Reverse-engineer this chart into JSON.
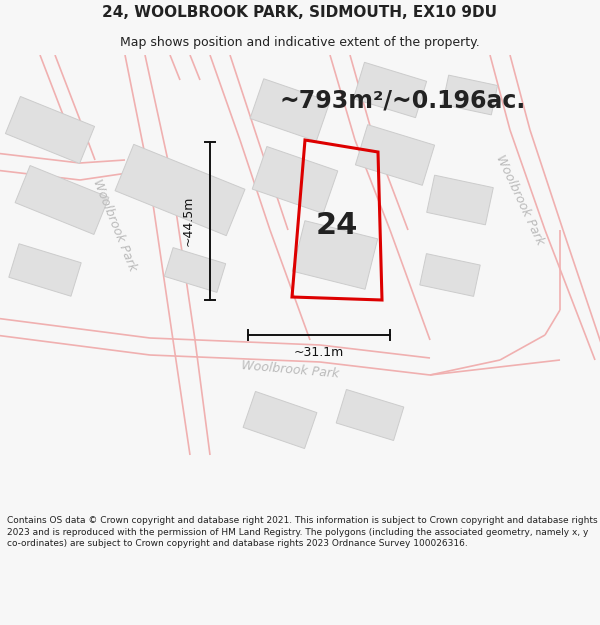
{
  "title_line1": "24, WOOLBROOK PARK, SIDMOUTH, EX10 9DU",
  "title_line2": "Map shows position and indicative extent of the property.",
  "area_text": "~793m²/~0.196ac.",
  "number_label": "24",
  "dim_width": "~31.1m",
  "dim_height": "~44.5m",
  "road_label_left": "Woolbrook Park",
  "road_label_right": "Woolbrook Park",
  "road_label_bottom": "Woolbrook Park",
  "footer_text": "Contains OS data © Crown copyright and database right 2021. This information is subject to Crown copyright and database rights 2023 and is reproduced with the permission of HM Land Registry. The polygons (including the associated geometry, namely x, y co-ordinates) are subject to Crown copyright and database rights 2023 Ordnance Survey 100026316.",
  "bg_color": "#f7f7f7",
  "map_bg": "#ffffff",
  "plot_outline_color": "#dd0000",
  "road_line_color": "#f0b0b0",
  "building_color": "#e0e0e0",
  "building_edge": "#cccccc",
  "road_text_color": "#bbbbbb",
  "text_color": "#222222",
  "dim_color": "#111111",
  "title_fontsize": 11,
  "subtitle_fontsize": 9,
  "area_fontsize": 17,
  "label_fontsize": 22,
  "dim_fontsize": 9,
  "road_fontsize": 9,
  "footer_fontsize": 6.5
}
